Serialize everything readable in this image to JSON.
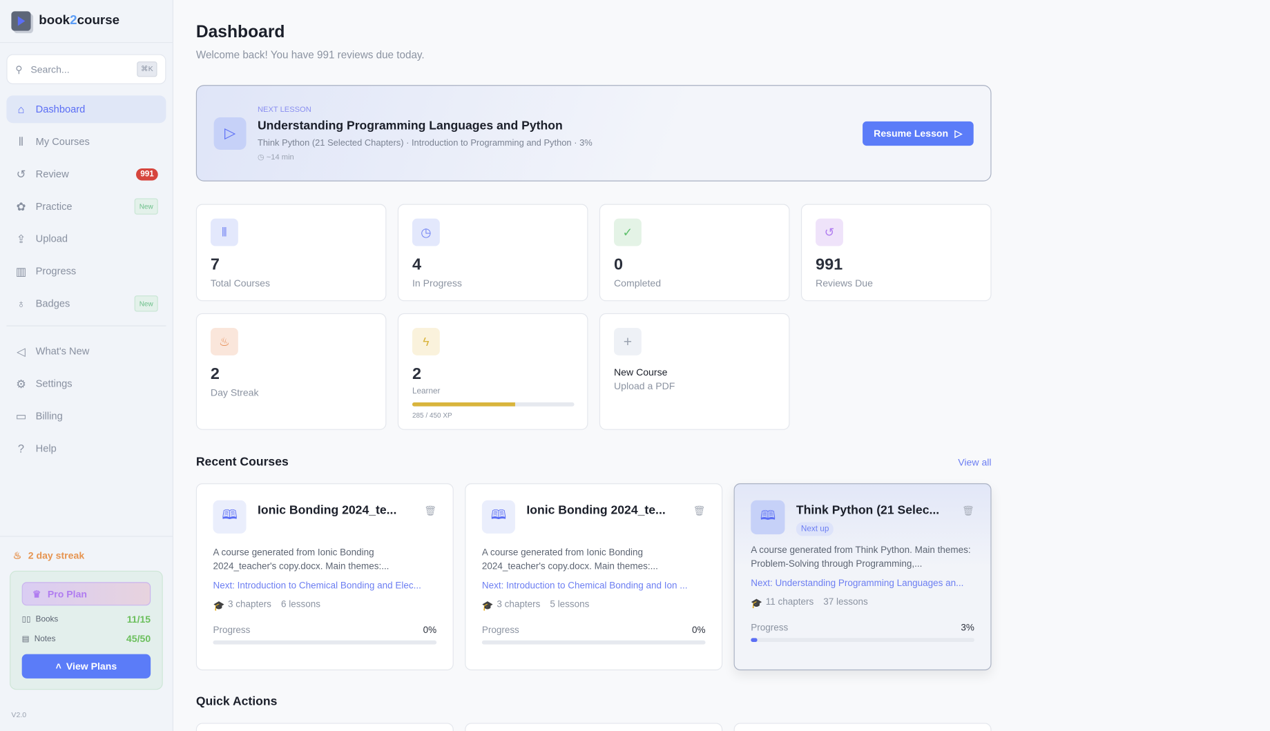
{
  "app": {
    "name_a": "book",
    "name_b": "2",
    "name_c": "course",
    "version": "V2.0"
  },
  "search": {
    "placeholder": "Search...",
    "shortcut": "⌘K"
  },
  "sidebar": {
    "items": [
      {
        "label": "Dashboard",
        "icon": "home-icon",
        "active": true
      },
      {
        "label": "My Courses",
        "icon": "library-icon"
      },
      {
        "label": "Review",
        "icon": "rotate-ccw-icon",
        "badge": "991"
      },
      {
        "label": "Practice",
        "icon": "brain-icon",
        "badge": "New"
      },
      {
        "label": "Upload",
        "icon": "upload-icon"
      },
      {
        "label": "Progress",
        "icon": "bar-chart-icon"
      },
      {
        "label": "Badges",
        "icon": "award-icon",
        "badge": "New"
      }
    ],
    "secondary": [
      {
        "label": "What's New",
        "icon": "megaphone-icon"
      },
      {
        "label": "Settings",
        "icon": "gear-icon"
      },
      {
        "label": "Billing",
        "icon": "credit-card-icon"
      },
      {
        "label": "Help",
        "icon": "help-circle-icon"
      }
    ],
    "streak": "2 day streak",
    "plan": {
      "name": "Pro Plan",
      "books_label": "Books",
      "books": "11/15",
      "notes_label": "Notes",
      "notes": "45/50",
      "button": "View Plans"
    }
  },
  "header": {
    "title": "Dashboard",
    "subtitle": "Welcome back! You have 991 reviews due today."
  },
  "next_lesson": {
    "label": "NEXT LESSON",
    "title": "Understanding Programming Languages and Python",
    "meta": "Think Python (21 Selected Chapters) · Introduction to Programming and Python · 3%",
    "time": "~14 min",
    "button": "Resume Lesson"
  },
  "stats": [
    {
      "value": "7",
      "label": "Total Courses",
      "icon": "library-icon",
      "color": "#6c7ef2"
    },
    {
      "value": "4",
      "label": "In Progress",
      "icon": "clock-icon",
      "color": "#6c7ef2"
    },
    {
      "value": "0",
      "label": "Completed",
      "icon": "check-circle-icon",
      "color": "#5cbf6a"
    },
    {
      "value": "991",
      "label": "Reviews Due",
      "icon": "rotate-ccw-icon",
      "color": "#b07cf0"
    },
    {
      "value": "2",
      "label": "Day Streak",
      "icon": "flame-icon",
      "color": "#e68a50"
    },
    {
      "value": "2",
      "label": "Learner",
      "icon": "zap-icon",
      "color": "#d9b43c",
      "xp": "285 / 450 XP",
      "xp_fraction": 0.633
    }
  ],
  "new_course": {
    "title": "New Course",
    "subtitle": "Upload a PDF"
  },
  "recent": {
    "title": "Recent Courses",
    "view_all": "View all",
    "courses": [
      {
        "title": "Ionic Bonding 2024_te...",
        "desc": "A course generated from Ionic Bonding 2024_teacher's copy.docx. Main themes:...",
        "next": "Next: Introduction to Chemical Bonding and Elec...",
        "chapters": "3 chapters",
        "lessons": "6 lessons",
        "progress_label": "Progress",
        "progress": "0%",
        "progress_value": 0
      },
      {
        "title": "Ionic Bonding 2024_te...",
        "desc": "A course generated from Ionic Bonding 2024_teacher's copy.docx. Main themes:...",
        "next": "Next: Introduction to Chemical Bonding and Ion ...",
        "chapters": "3 chapters",
        "lessons": "5 lessons",
        "progress_label": "Progress",
        "progress": "0%",
        "progress_value": 0
      },
      {
        "title": "Think Python (21 Selec...",
        "tag": "Next up",
        "desc": "A course generated from Think Python. Main themes: Problem-Solving through Programming,...",
        "next": "Next: Understanding Programming Languages an...",
        "chapters": "11 chapters",
        "lessons": "37 lessons",
        "progress_label": "Progress",
        "progress": "3%",
        "progress_value": 3
      }
    ]
  },
  "quick_actions": {
    "title": "Quick Actions"
  }
}
